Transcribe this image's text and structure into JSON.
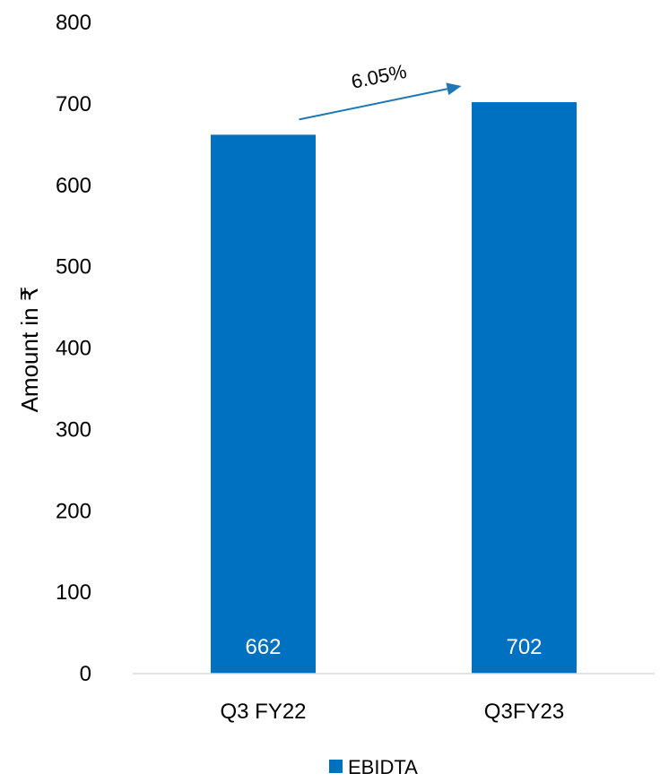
{
  "chart_data": {
    "type": "bar",
    "categories": [
      "Q3 FY22",
      "Q3FY23"
    ],
    "series": [
      {
        "name": "EBIDTA",
        "values": [
          662,
          702
        ],
        "color": "#0070c0"
      }
    ],
    "ylabel": "Amount in ₹",
    "ylim": [
      0,
      800
    ],
    "yticks": [
      "0",
      "100",
      "200",
      "300",
      "400",
      "500",
      "600",
      "700",
      "800"
    ],
    "data_labels": [
      "662",
      "702"
    ],
    "annotation": {
      "text": "6.05%",
      "color": "#1f77b4"
    },
    "grid": false,
    "legend": {
      "position": "bottom",
      "entries": [
        "EBIDTA"
      ]
    }
  }
}
